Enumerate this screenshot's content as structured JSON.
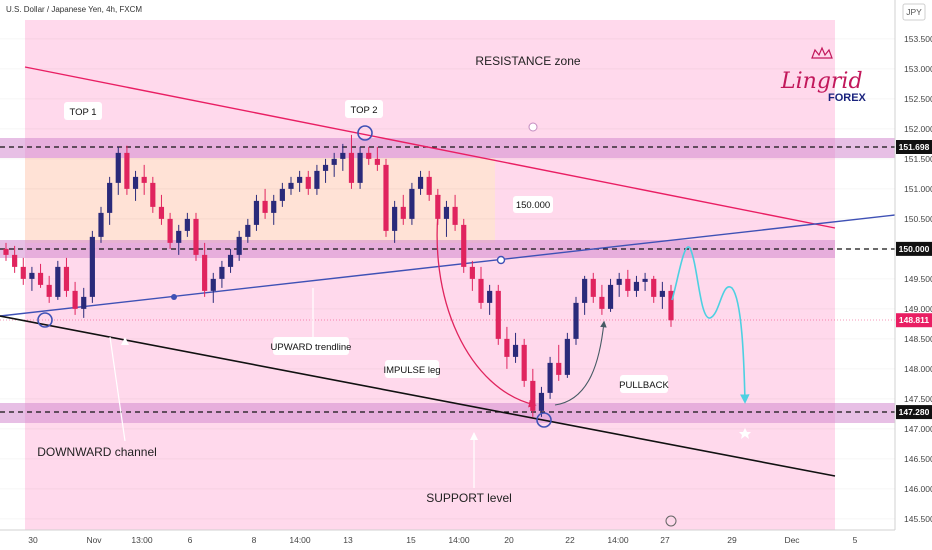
{
  "header": {
    "symbol": "U.S. Dollar / Japanese Yen, 4h, FXCM"
  },
  "axis": {
    "currency": "JPY",
    "y_ticks": [
      "153.500",
      "153.000",
      "152.500",
      "152.000",
      "151.500",
      "151.000",
      "150.500",
      "150.000",
      "149.500",
      "149.000",
      "148.500",
      "148.000",
      "147.500",
      "147.000",
      "146.500",
      "146.000",
      "145.500"
    ],
    "x_ticks": [
      "30",
      "Nov",
      "13:00",
      "6",
      "8",
      "14:00",
      "13",
      "15",
      "14:00",
      "20",
      "22",
      "14:00",
      "27",
      "29",
      "Dec",
      "5"
    ]
  },
  "price_tags": [
    {
      "value": "151.698",
      "color": "#ffffff",
      "bg": "#111111"
    },
    {
      "value": "150.000",
      "color": "#ffffff",
      "bg": "#111111"
    },
    {
      "value": "148.811",
      "color": "#ffffff",
      "bg": "#e91e63"
    },
    {
      "value": "147.280",
      "color": "#ffffff",
      "bg": "#111111"
    }
  ],
  "annotations": {
    "resistance_zone": "RESISTANCE zone",
    "top1": "TOP 1",
    "top2": "TOP 2",
    "level_150": "150.000",
    "upward_trendline": "UPWARD trendline",
    "impulse_leg": "IMPULSE leg",
    "pullback": "PULLBACK",
    "downward_channel": "DOWNWARD channel",
    "support_level": "SUPPORT level"
  },
  "logo": {
    "line1": "Lingrid",
    "line2": "FOREX"
  },
  "colors": {
    "bull": "#2a2a7a",
    "bear": "#e0245e",
    "resistance_line": "#e91e63",
    "trendline": "#3f51b5",
    "channel": "#111111",
    "projection": "#4dd0e1",
    "zone": "#d48bd0",
    "background": "#ffd9ec",
    "range_box": "#ffe4cf"
  },
  "chart_data": {
    "type": "candlestick",
    "symbol": "USD/JPY",
    "timeframe": "4h",
    "ylim": [
      145.3,
      153.7
    ],
    "levels": [
      151.698,
      150.0,
      148.811,
      147.28
    ],
    "last_price": 148.811,
    "candles": [
      [
        150.0,
        150.1,
        149.8,
        149.9
      ],
      [
        149.9,
        150.05,
        149.6,
        149.7
      ],
      [
        149.7,
        149.85,
        149.4,
        149.5
      ],
      [
        149.5,
        149.7,
        149.3,
        149.6
      ],
      [
        149.6,
        149.75,
        149.35,
        149.4
      ],
      [
        149.4,
        149.55,
        149.1,
        149.2
      ],
      [
        149.2,
        149.8,
        149.15,
        149.7
      ],
      [
        149.7,
        149.85,
        149.2,
        149.3
      ],
      [
        149.3,
        149.45,
        148.9,
        149.0
      ],
      [
        149.0,
        149.35,
        148.85,
        149.2
      ],
      [
        149.2,
        150.3,
        149.1,
        150.2
      ],
      [
        150.2,
        150.7,
        150.1,
        150.6
      ],
      [
        150.6,
        151.2,
        150.4,
        151.1
      ],
      [
        151.1,
        151.7,
        150.9,
        151.6
      ],
      [
        151.6,
        151.72,
        150.9,
        151.0
      ],
      [
        151.0,
        151.3,
        150.8,
        151.2
      ],
      [
        151.2,
        151.4,
        150.9,
        151.1
      ],
      [
        151.1,
        151.2,
        150.6,
        150.7
      ],
      [
        150.7,
        150.9,
        150.4,
        150.5
      ],
      [
        150.5,
        150.6,
        150.0,
        150.1
      ],
      [
        150.1,
        150.4,
        149.9,
        150.3
      ],
      [
        150.3,
        150.6,
        150.2,
        150.5
      ],
      [
        150.5,
        150.6,
        149.8,
        149.9
      ],
      [
        149.9,
        150.1,
        149.2,
        149.3
      ],
      [
        149.3,
        149.6,
        149.1,
        149.5
      ],
      [
        149.5,
        149.8,
        149.35,
        149.7
      ],
      [
        149.7,
        150.0,
        149.6,
        149.9
      ],
      [
        149.9,
        150.3,
        149.8,
        150.2
      ],
      [
        150.2,
        150.5,
        150.1,
        150.4
      ],
      [
        150.4,
        150.9,
        150.3,
        150.8
      ],
      [
        150.8,
        151.0,
        150.5,
        150.6
      ],
      [
        150.6,
        150.9,
        150.4,
        150.8
      ],
      [
        150.8,
        151.1,
        150.7,
        151.0
      ],
      [
        151.0,
        151.2,
        150.9,
        151.1
      ],
      [
        151.1,
        151.3,
        150.95,
        151.2
      ],
      [
        151.2,
        151.3,
        150.9,
        151.0
      ],
      [
        151.0,
        151.4,
        150.9,
        151.3
      ],
      [
        151.3,
        151.5,
        151.1,
        151.4
      ],
      [
        151.4,
        151.6,
        151.2,
        151.5
      ],
      [
        151.5,
        151.75,
        151.3,
        151.6
      ],
      [
        151.6,
        151.9,
        151.0,
        151.1
      ],
      [
        151.1,
        151.7,
        151.0,
        151.6
      ],
      [
        151.6,
        151.7,
        151.4,
        151.5
      ],
      [
        151.5,
        151.7,
        151.3,
        151.4
      ],
      [
        151.4,
        151.5,
        150.2,
        150.3
      ],
      [
        150.3,
        150.8,
        150.1,
        150.7
      ],
      [
        150.7,
        150.9,
        150.4,
        150.5
      ],
      [
        150.5,
        151.1,
        150.4,
        151.0
      ],
      [
        151.0,
        151.3,
        150.9,
        151.2
      ],
      [
        151.2,
        151.3,
        150.8,
        150.9
      ],
      [
        150.9,
        151.0,
        150.4,
        150.5
      ],
      [
        150.5,
        150.8,
        150.2,
        150.7
      ],
      [
        150.7,
        150.9,
        150.3,
        150.4
      ],
      [
        150.4,
        150.5,
        149.6,
        149.7
      ],
      [
        149.7,
        149.8,
        149.3,
        149.5
      ],
      [
        149.5,
        149.7,
        149.0,
        149.1
      ],
      [
        149.1,
        149.4,
        148.9,
        149.3
      ],
      [
        149.3,
        149.4,
        148.4,
        148.5
      ],
      [
        148.5,
        148.7,
        148.0,
        148.2
      ],
      [
        148.2,
        148.6,
        148.1,
        148.4
      ],
      [
        148.4,
        148.5,
        147.7,
        147.8
      ],
      [
        147.8,
        148.0,
        147.2,
        147.3
      ],
      [
        147.3,
        147.7,
        147.2,
        147.6
      ],
      [
        147.6,
        148.2,
        147.5,
        148.1
      ],
      [
        148.1,
        148.4,
        147.8,
        147.9
      ],
      [
        147.9,
        148.6,
        147.85,
        148.5
      ],
      [
        148.5,
        149.2,
        148.4,
        149.1
      ],
      [
        149.1,
        149.55,
        148.9,
        149.5
      ],
      [
        149.5,
        149.6,
        149.1,
        149.2
      ],
      [
        149.2,
        149.4,
        148.9,
        149.0
      ],
      [
        149.0,
        149.5,
        148.95,
        149.4
      ],
      [
        149.4,
        149.6,
        149.2,
        149.5
      ],
      [
        149.5,
        149.65,
        149.2,
        149.3
      ],
      [
        149.3,
        149.55,
        149.2,
        149.45
      ],
      [
        149.45,
        149.6,
        149.3,
        149.5
      ],
      [
        149.5,
        149.55,
        149.1,
        149.2
      ],
      [
        149.2,
        149.45,
        149.0,
        149.3
      ],
      [
        149.3,
        149.4,
        148.7,
        148.81
      ]
    ]
  }
}
